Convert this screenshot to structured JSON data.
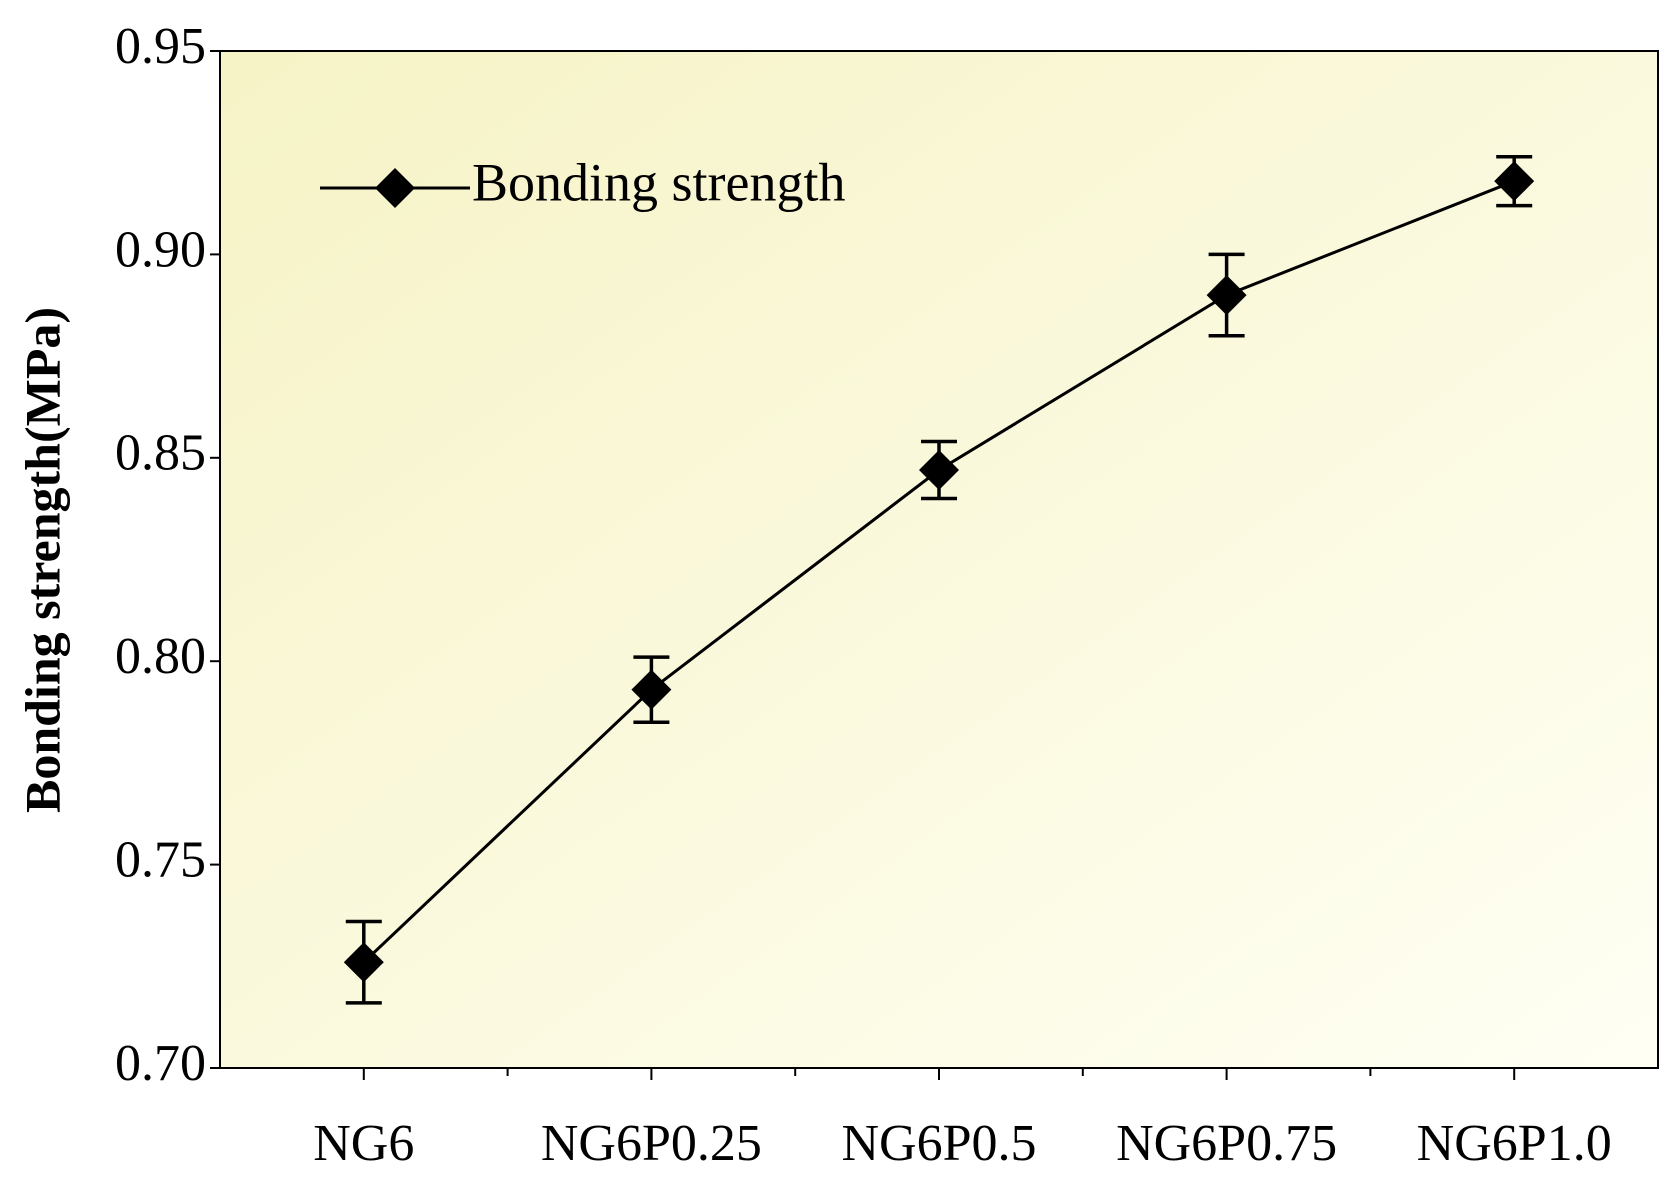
{
  "chart_data": {
    "type": "line",
    "y_label": "Bonding strength(MPa)",
    "categories": [
      "NG6",
      "NG6P0.25",
      "NG6P0.5",
      "NG6P0.75",
      "NG6P1.0"
    ],
    "series": [
      {
        "name": "Bonding strength",
        "color": "#000000",
        "values": [
          0.726,
          0.793,
          0.847,
          0.89,
          0.918
        ],
        "errors": [
          0.01,
          0.008,
          0.007,
          0.01,
          0.006
        ]
      }
    ],
    "ylim": [
      0.7,
      0.95
    ],
    "yticks": [
      {
        "value": 0.7,
        "label": "0.70"
      },
      0.75,
      {
        "value": 0.8,
        "label": "0.80"
      },
      0.85,
      {
        "value": 0.9,
        "label": "0.90"
      },
      0.95
    ],
    "legend": "upper left"
  }
}
